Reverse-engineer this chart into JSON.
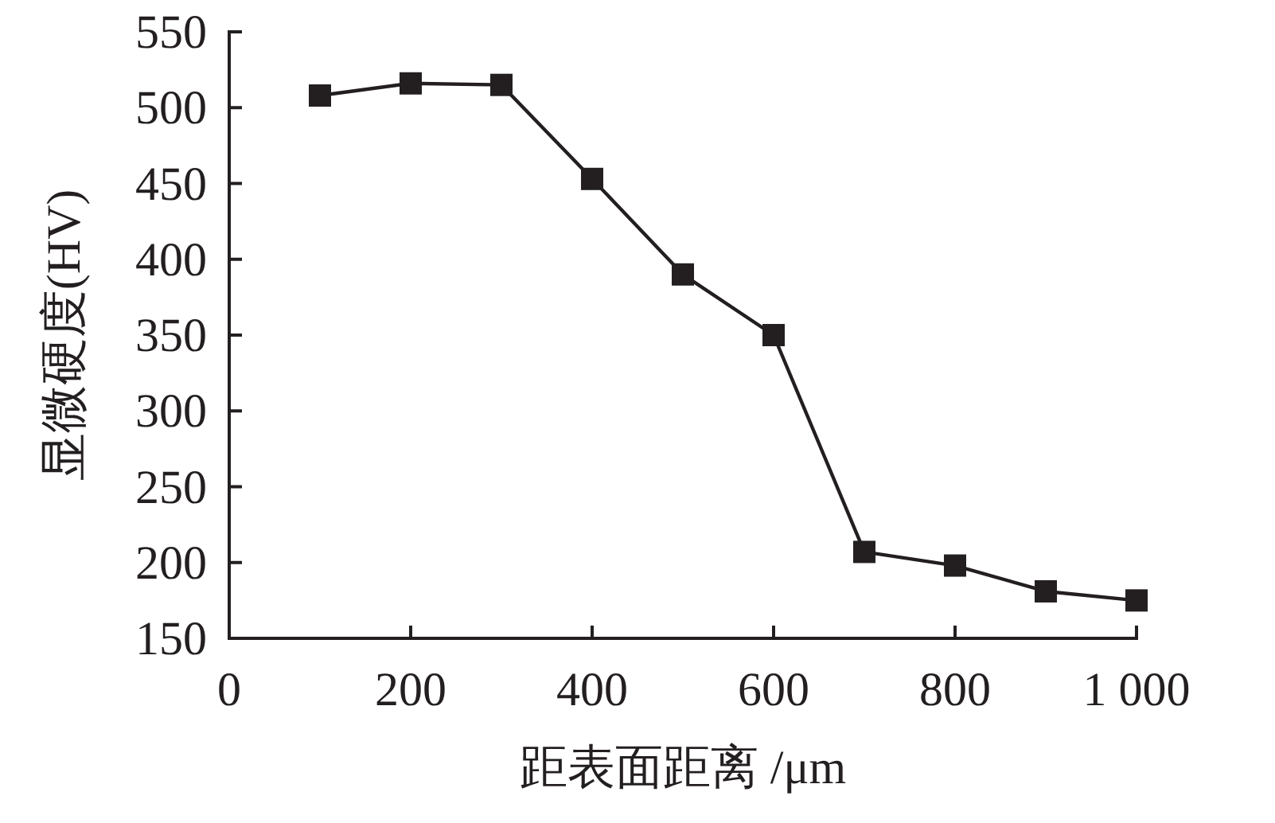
{
  "chart_data": {
    "type": "line",
    "xlabel": "距表面距离 /μm",
    "ylabel": "显微硬度(HV)",
    "x": [
      100,
      200,
      300,
      400,
      500,
      600,
      700,
      800,
      900,
      1000
    ],
    "series": [
      {
        "color": "#231f20",
        "values": [
          508,
          516,
          515,
          453,
          390,
          350,
          207,
          198,
          181,
          175
        ]
      }
    ],
    "xlim": [
      0,
      1000
    ],
    "ylim": [
      150,
      550
    ],
    "xticks": [
      0,
      200,
      400,
      600,
      800,
      {
        "value": 1000,
        "label": "1 000"
      }
    ],
    "yticks": [
      150,
      200,
      250,
      300,
      350,
      400,
      450,
      500,
      550
    ],
    "marker": "square",
    "line_style": "solid"
  }
}
